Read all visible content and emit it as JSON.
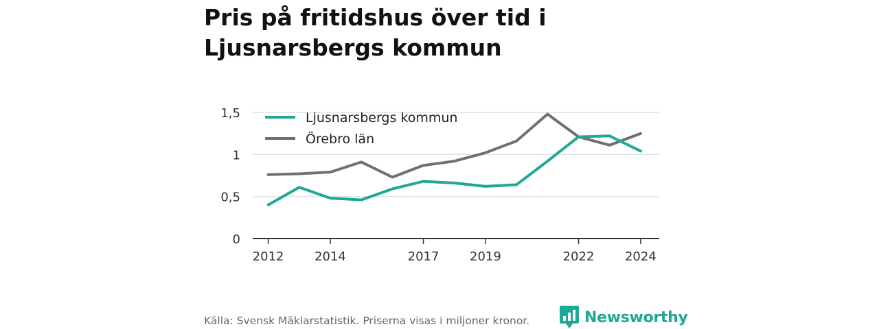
{
  "header": {
    "title": "Pris på fritidshus över tid i Ljusnarsbergs kommun"
  },
  "footer": {
    "source": "Källa: Svensk Mäklarstatistik. Priserna visas i miljoner kronor."
  },
  "logo": {
    "text": "Newsworthy",
    "icon": "bar-chart-speech-bubble-icon"
  },
  "colors": {
    "teal": "#1fa896",
    "gray": "#707070"
  },
  "chart_data": {
    "type": "line",
    "x": [
      2012,
      2013,
      2014,
      2015,
      2016,
      2017,
      2018,
      2019,
      2020,
      2021,
      2022,
      2023,
      2024
    ],
    "xticks": [
      2012,
      2014,
      2017,
      2019,
      2022,
      2024
    ],
    "xtick_labels": [
      "2012",
      "2014",
      "2017",
      "2019",
      "2022",
      "2024"
    ],
    "yticks": [
      0,
      0.5,
      1,
      1.5
    ],
    "ytick_labels": [
      "0",
      "0,5",
      "1",
      "1,5"
    ],
    "ylim": [
      0,
      1.5
    ],
    "xlim": [
      2011.5,
      2024.6
    ],
    "grid": "horizontal",
    "legend_position": "top-left",
    "series": [
      {
        "name": "Ljusnarsbergs kommun",
        "color": "#1fa896",
        "values": [
          0.4,
          0.61,
          0.48,
          0.46,
          0.59,
          0.68,
          0.66,
          0.62,
          0.64,
          0.92,
          1.21,
          1.22,
          1.04
        ]
      },
      {
        "name": "Örebro län",
        "color": "#707070",
        "values": [
          0.76,
          0.77,
          0.79,
          0.91,
          0.73,
          0.87,
          0.92,
          1.02,
          1.16,
          1.48,
          1.21,
          1.11,
          1.25
        ]
      }
    ]
  }
}
